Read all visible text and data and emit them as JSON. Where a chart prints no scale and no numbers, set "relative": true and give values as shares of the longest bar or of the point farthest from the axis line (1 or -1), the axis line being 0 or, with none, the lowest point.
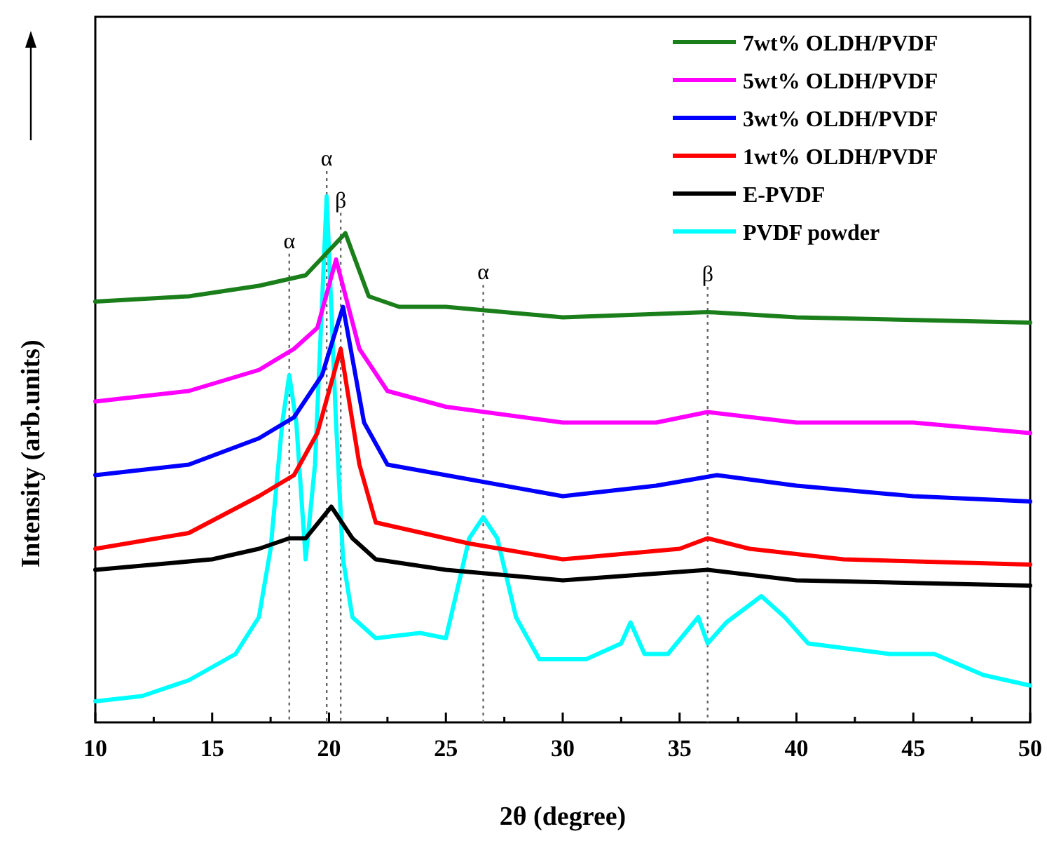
{
  "chart_data": {
    "type": "line",
    "relative": true,
    "xlabel": "2θ (degree)",
    "ylabel": "Intensity (arb.units)",
    "xlim": [
      10,
      50
    ],
    "xticks": [
      10,
      {
        "value": 12.5,
        "label": null
      },
      15,
      {
        "value": 17.5,
        "label": null
      },
      20,
      {
        "value": 22.5,
        "label": null
      },
      25,
      {
        "value": 27.5,
        "label": null
      },
      30,
      {
        "value": 32.5,
        "label": null
      },
      35,
      {
        "value": 37.5,
        "label": null
      },
      40,
      {
        "value": 42.5,
        "label": null
      },
      45,
      {
        "value": 47.5,
        "label": null
      },
      50
    ],
    "tick_labels": "x",
    "legend": "top right",
    "grid": false,
    "marker": "none",
    "line_style": "solid",
    "series": [
      {
        "name": "7wt% OLDH/PVDF",
        "color": "#1a7f1a",
        "x": [
          10,
          14,
          17,
          19,
          20.7,
          21.7,
          23,
          25,
          30,
          36.2,
          40,
          50
        ],
        "values": [
          0.8,
          0.81,
          0.83,
          0.85,
          0.93,
          0.81,
          0.79,
          0.79,
          0.77,
          0.78,
          0.77,
          0.76
        ]
      },
      {
        "name": "5wt% OLDH/PVDF",
        "color": "#ff00ff",
        "x": [
          10,
          14,
          17,
          18.5,
          19.5,
          20.3,
          21.3,
          22.5,
          25,
          30,
          34,
          36.2,
          40,
          45,
          50
        ],
        "values": [
          0.61,
          0.63,
          0.67,
          0.71,
          0.75,
          0.88,
          0.71,
          0.63,
          0.6,
          0.57,
          0.57,
          0.59,
          0.57,
          0.57,
          0.55
        ]
      },
      {
        "name": "3wt% OLDH/PVDF",
        "color": "#0000ff",
        "x": [
          10,
          14,
          17,
          18.5,
          19.7,
          20.6,
          21.5,
          22.5,
          25,
          30,
          34,
          36.6,
          40,
          45,
          50
        ],
        "values": [
          0.47,
          0.49,
          0.54,
          0.58,
          0.66,
          0.79,
          0.57,
          0.49,
          0.47,
          0.43,
          0.45,
          0.47,
          0.45,
          0.43,
          0.42
        ]
      },
      {
        "name": "1wt% OLDH/PVDF",
        "color": "#ff0000",
        "x": [
          10,
          14,
          17,
          18.5,
          19.5,
          20.5,
          21.3,
          22,
          24,
          26,
          30,
          35,
          36.2,
          38,
          42,
          50
        ],
        "values": [
          0.33,
          0.36,
          0.43,
          0.47,
          0.55,
          0.71,
          0.49,
          0.38,
          0.36,
          0.34,
          0.31,
          0.33,
          0.35,
          0.33,
          0.31,
          0.3
        ]
      },
      {
        "name": "E-PVDF",
        "color": "#000000",
        "x": [
          10,
          15,
          17,
          18.3,
          19,
          20.1,
          21,
          22,
          25,
          30,
          36.2,
          40,
          50
        ],
        "values": [
          0.29,
          0.31,
          0.33,
          0.35,
          0.35,
          0.41,
          0.35,
          0.31,
          0.29,
          0.27,
          0.29,
          0.27,
          0.26
        ]
      },
      {
        "name": "PVDF powder",
        "color": "#00ffff",
        "x": [
          10,
          12,
          14,
          16,
          17,
          17.5,
          18,
          18.3,
          18.6,
          19,
          19.4,
          19.9,
          20.3,
          20.6,
          21,
          22,
          23.9,
          25,
          26,
          26.6,
          27.2,
          28,
          29,
          31,
          32.5,
          32.9,
          33.5,
          34.5,
          35.8,
          36.2,
          37,
          38.5,
          39.5,
          40.5,
          44,
          45.9,
          48,
          50
        ],
        "values": [
          0.04,
          0.05,
          0.08,
          0.13,
          0.2,
          0.33,
          0.57,
          0.66,
          0.57,
          0.31,
          0.49,
          1,
          0.57,
          0.31,
          0.2,
          0.16,
          0.17,
          0.16,
          0.35,
          0.39,
          0.35,
          0.2,
          0.12,
          0.12,
          0.15,
          0.19,
          0.13,
          0.13,
          0.2,
          0.15,
          0.19,
          0.24,
          0.2,
          0.15,
          0.13,
          0.13,
          0.09,
          0.07
        ]
      }
    ],
    "ref_lines": [
      {
        "axis": "x",
        "value": 18.3,
        "label": "α",
        "line_style": "dotted",
        "color": "#666666"
      },
      {
        "axis": "x",
        "value": 19.9,
        "label": "α",
        "line_style": "dotted",
        "color": "#666666"
      },
      {
        "axis": "x",
        "value": 20.5,
        "label": "β",
        "line_style": "dotted",
        "color": "#666666"
      },
      {
        "axis": "x",
        "value": 26.6,
        "label": "α",
        "line_style": "dotted",
        "color": "#666666"
      },
      {
        "axis": "x",
        "value": 36.2,
        "label": "β",
        "line_style": "dotted",
        "color": "#666666"
      }
    ]
  }
}
